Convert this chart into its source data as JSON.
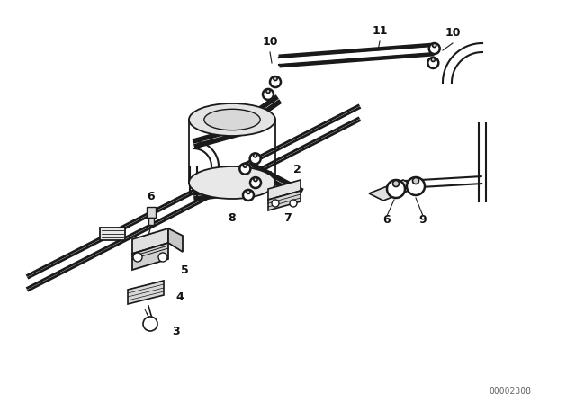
{
  "background_color": "#ffffff",
  "line_color": "#1a1a1a",
  "text_color": "#111111",
  "watermark": "00002308",
  "fig_w": 6.4,
  "fig_h": 4.48,
  "dpi": 100
}
